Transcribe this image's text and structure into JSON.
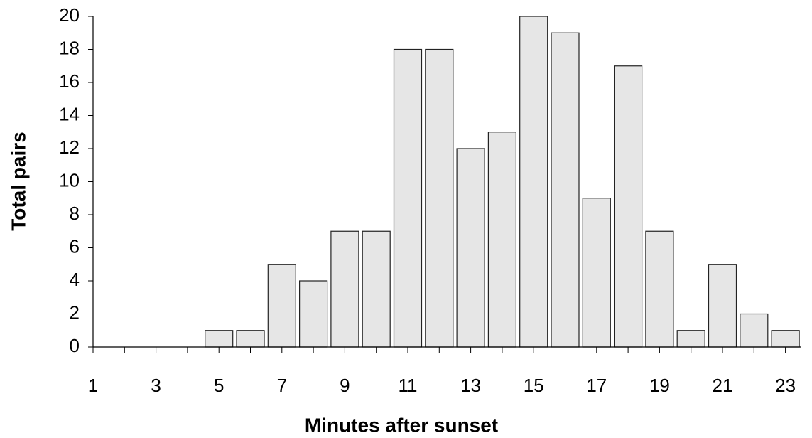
{
  "chart_data": {
    "type": "bar",
    "x_label": "Minutes after sunset",
    "y_label": "Total pairs",
    "categories": [
      "1",
      null,
      "3",
      null,
      "5",
      null,
      "7",
      null,
      "9",
      null,
      "11",
      null,
      "13",
      null,
      "15",
      null,
      "17",
      null,
      "19",
      null,
      "21",
      null,
      "23"
    ],
    "values": [
      0,
      0,
      0,
      0,
      1,
      1,
      5,
      4,
      7,
      7,
      18,
      18,
      12,
      13,
      20,
      19,
      9,
      17,
      7,
      1,
      5,
      2,
      1
    ],
    "color": "#e6e6e6",
    "ylim": [
      0,
      20
    ],
    "yticks": [
      0,
      2,
      4,
      6,
      8,
      10,
      12,
      14,
      16,
      18,
      20
    ],
    "grid": false
  }
}
